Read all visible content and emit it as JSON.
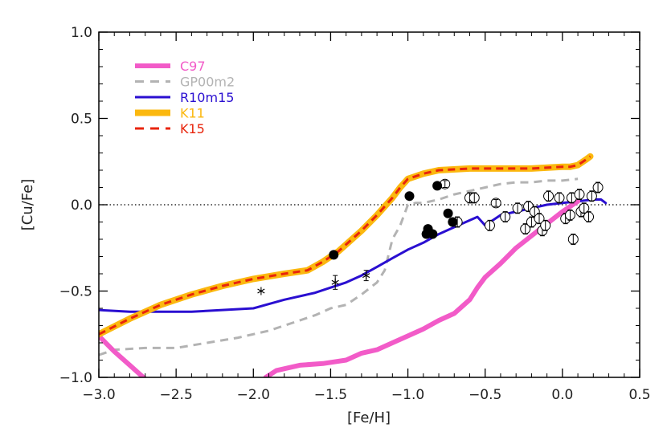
{
  "chart_data": {
    "type": "line",
    "title": "",
    "xlabel": "[Fe/H]",
    "ylabel": "[Cu/Fe]",
    "xlim": [
      -3.0,
      0.5
    ],
    "ylim": [
      -1.0,
      1.0
    ],
    "x_ticks": [
      -3.0,
      -2.5,
      -2.0,
      -1.5,
      -1.0,
      -0.5,
      0.0,
      0.5
    ],
    "x_tick_labels": [
      "−3.0",
      "−2.5",
      "−2.0",
      "−1.5",
      "−1.0",
      "−0.5",
      "0.0",
      "0.5"
    ],
    "y_ticks": [
      -1.0,
      -0.5,
      0.0,
      0.5,
      1.0
    ],
    "y_tick_labels": [
      "−1.0",
      "−0.5",
      "0.0",
      "0.5",
      "1.0"
    ],
    "grid": false,
    "reference_line": {
      "y": 0.0,
      "style": "dotted",
      "color": "#000000"
    },
    "legend_position": "top-left",
    "series": [
      {
        "name": "C97",
        "color": "#f25bc8",
        "style": "solid",
        "width": 6,
        "x": [
          -3.0,
          -2.9,
          -2.8,
          -2.7
        ],
        "y": [
          -0.76,
          -0.85,
          -0.93,
          -1.01
        ],
        "x2": [
          -1.92,
          -1.85,
          -1.7,
          -1.55,
          -1.4,
          -1.3,
          -1.2,
          -1.1,
          -1.0,
          -0.9,
          -0.8,
          -0.7,
          -0.6,
          -0.55,
          -0.5,
          -0.4,
          -0.3,
          -0.2,
          -0.1,
          0.0,
          0.1
        ],
        "y2": [
          -1.0,
          -0.96,
          -0.93,
          -0.92,
          -0.9,
          -0.86,
          -0.84,
          -0.8,
          -0.76,
          -0.72,
          -0.67,
          -0.63,
          -0.55,
          -0.48,
          -0.42,
          -0.34,
          -0.25,
          -0.18,
          -0.11,
          -0.04,
          0.02
        ]
      },
      {
        "name": "GP00m2",
        "color": "#b3b3b3",
        "style": "dashed",
        "width": 3,
        "x": [
          -3.0,
          -2.9,
          -2.7,
          -2.5,
          -2.3,
          -2.1,
          -1.9,
          -1.7,
          -1.6,
          -1.5,
          -1.4,
          -1.3,
          -1.2,
          -1.15,
          -1.1,
          -1.05,
          -1.0,
          -0.95,
          -0.9,
          -0.8,
          -0.7,
          -0.6,
          -0.5,
          -0.4,
          -0.3,
          -0.2,
          -0.1,
          0.0,
          0.1
        ],
        "y": [
          -0.87,
          -0.84,
          -0.83,
          -0.83,
          -0.8,
          -0.77,
          -0.73,
          -0.67,
          -0.64,
          -0.6,
          -0.58,
          -0.52,
          -0.45,
          -0.38,
          -0.2,
          -0.12,
          0.0,
          0.01,
          0.01,
          0.03,
          0.06,
          0.08,
          0.1,
          0.12,
          0.13,
          0.13,
          0.14,
          0.14,
          0.15
        ]
      },
      {
        "name": "R10m15",
        "color": "#2a0fd1",
        "style": "solid",
        "width": 3,
        "x": [
          -3.0,
          -2.8,
          -2.6,
          -2.4,
          -2.2,
          -2.0,
          -1.8,
          -1.6,
          -1.5,
          -1.4,
          -1.3,
          -1.2,
          -1.1,
          -1.0,
          -0.9,
          -0.8,
          -0.7,
          -0.6,
          -0.55,
          -0.5,
          -0.4,
          -0.3,
          -0.2,
          -0.1,
          0.0,
          0.1,
          0.2,
          0.25,
          0.28
        ],
        "y": [
          -0.61,
          -0.62,
          -0.62,
          -0.62,
          -0.61,
          -0.6,
          -0.55,
          -0.51,
          -0.48,
          -0.45,
          -0.41,
          -0.36,
          -0.31,
          -0.26,
          -0.22,
          -0.17,
          -0.13,
          -0.09,
          -0.07,
          -0.12,
          -0.06,
          -0.04,
          -0.02,
          0.0,
          0.01,
          0.02,
          0.03,
          0.03,
          0.01
        ]
      },
      {
        "name": "K11",
        "color": "#fbb80f",
        "style": "solid",
        "width": 8,
        "x": [
          -3.0,
          -2.8,
          -2.6,
          -2.4,
          -2.2,
          -2.0,
          -1.8,
          -1.65,
          -1.55,
          -1.45,
          -1.3,
          -1.2,
          -1.1,
          -1.05,
          -1.0,
          -0.9,
          -0.8,
          -0.6,
          -0.4,
          -0.2,
          0.0,
          0.05,
          0.1,
          0.15,
          0.18
        ],
        "y": [
          -0.75,
          -0.66,
          -0.58,
          -0.52,
          -0.47,
          -0.43,
          -0.4,
          -0.38,
          -0.33,
          -0.27,
          -0.15,
          -0.06,
          0.04,
          0.1,
          0.15,
          0.18,
          0.2,
          0.21,
          0.21,
          0.21,
          0.22,
          0.22,
          0.23,
          0.26,
          0.28
        ]
      },
      {
        "name": "K15",
        "color": "#e8250c",
        "style": "dashed",
        "width": 3,
        "x": [
          -3.0,
          -2.8,
          -2.6,
          -2.4,
          -2.2,
          -2.0,
          -1.8,
          -1.65,
          -1.55,
          -1.45,
          -1.3,
          -1.2,
          -1.1,
          -1.05,
          -1.0,
          -0.9,
          -0.8,
          -0.6,
          -0.4,
          -0.2,
          0.0,
          0.05,
          0.1,
          0.15,
          0.18
        ],
        "y": [
          -0.75,
          -0.66,
          -0.58,
          -0.52,
          -0.47,
          -0.43,
          -0.4,
          -0.38,
          -0.33,
          -0.27,
          -0.15,
          -0.06,
          0.04,
          0.1,
          0.15,
          0.18,
          0.2,
          0.21,
          0.21,
          0.21,
          0.22,
          0.22,
          0.23,
          0.26,
          0.28
        ]
      }
    ],
    "observations": {
      "filled_circles": [
        {
          "x": -1.48,
          "y": -0.29
        },
        {
          "x": -0.99,
          "y": 0.05
        },
        {
          "x": -0.81,
          "y": 0.11
        },
        {
          "x": -0.88,
          "y": -0.17
        },
        {
          "x": -0.87,
          "y": -0.14
        },
        {
          "x": -0.84,
          "y": -0.17
        },
        {
          "x": -0.74,
          "y": -0.05
        },
        {
          "x": -0.71,
          "y": -0.1
        }
      ],
      "stars": [
        {
          "x": -1.95,
          "y": -0.5,
          "err": 0.0
        },
        {
          "x": -1.47,
          "y": -0.45,
          "err": 0.04
        },
        {
          "x": -1.27,
          "y": -0.41,
          "err": 0.03
        }
      ],
      "open_circles": [
        {
          "x": -0.76,
          "y": 0.12,
          "err": 0.02
        },
        {
          "x": -0.68,
          "y": -0.1,
          "err": 0.03
        },
        {
          "x": -0.6,
          "y": 0.04,
          "err": 0.03
        },
        {
          "x": -0.57,
          "y": 0.04,
          "err": 0.03
        },
        {
          "x": -0.47,
          "y": -0.12,
          "err": 0.03
        },
        {
          "x": -0.43,
          "y": 0.01,
          "err": 0.02
        },
        {
          "x": -0.37,
          "y": -0.07,
          "err": 0.03
        },
        {
          "x": -0.29,
          "y": -0.02,
          "err": 0.03
        },
        {
          "x": -0.24,
          "y": -0.14,
          "err": 0.03
        },
        {
          "x": -0.22,
          "y": -0.01,
          "err": 0.03
        },
        {
          "x": -0.2,
          "y": -0.1,
          "err": 0.03
        },
        {
          "x": -0.18,
          "y": -0.04,
          "err": 0.03
        },
        {
          "x": -0.15,
          "y": -0.08,
          "err": 0.03
        },
        {
          "x": -0.13,
          "y": -0.15,
          "err": 0.03
        },
        {
          "x": -0.11,
          "y": -0.12,
          "err": 0.03
        },
        {
          "x": -0.09,
          "y": 0.05,
          "err": 0.03
        },
        {
          "x": -0.02,
          "y": 0.04,
          "err": 0.03
        },
        {
          "x": 0.02,
          "y": -0.08,
          "err": 0.03
        },
        {
          "x": 0.05,
          "y": -0.06,
          "err": 0.03
        },
        {
          "x": 0.06,
          "y": 0.04,
          "err": 0.03
        },
        {
          "x": 0.07,
          "y": -0.2,
          "err": 0.03
        },
        {
          "x": 0.11,
          "y": 0.06,
          "err": 0.03
        },
        {
          "x": 0.12,
          "y": -0.04,
          "err": 0.03
        },
        {
          "x": 0.14,
          "y": -0.02,
          "err": 0.03
        },
        {
          "x": 0.17,
          "y": -0.07,
          "err": 0.03
        },
        {
          "x": 0.19,
          "y": 0.05,
          "err": 0.03
        },
        {
          "x": 0.23,
          "y": 0.1,
          "err": 0.03
        }
      ]
    }
  }
}
